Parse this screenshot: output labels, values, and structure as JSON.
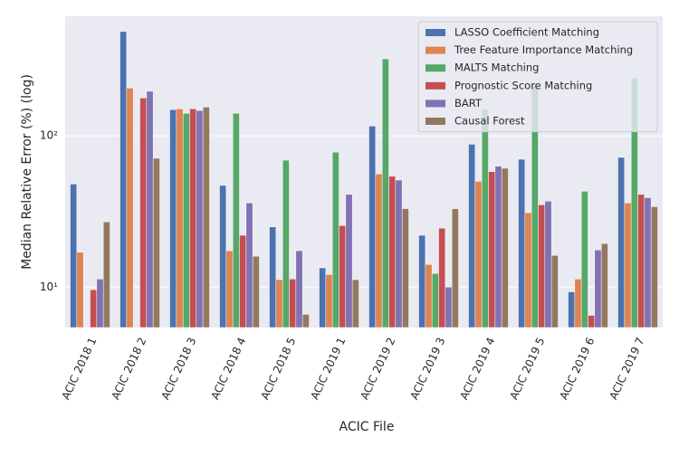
{
  "chart_data": {
    "type": "bar",
    "log_scale": true,
    "grid": true,
    "legend_position": "upper right",
    "xlabel": "ACIC File",
    "ylabel": "Median Relative Error (%) (log)",
    "categories": [
      "ACIC 2018 1",
      "ACIC 2018 2",
      "ACIC 2018 3",
      "ACIC 2018 4",
      "ACIC 2018 5",
      "ACIC 2019 1",
      "ACIC 2019 2",
      "ACIC 2019 3",
      "ACIC 2019 4",
      "ACIC 2019 5",
      "ACIC 2019 6",
      "ACIC 2019 7"
    ],
    "ylim": [
      5.4,
      617
    ],
    "yticks": [
      {
        "value": 10,
        "label": "10¹"
      },
      {
        "value": 100,
        "label": "10²"
      }
    ],
    "series": [
      {
        "name": "LASSO Coefficient Matching",
        "color": "#4c72b0",
        "values": [
          48,
          489,
          149,
          47,
          25,
          13.4,
          116,
          22,
          88,
          70,
          9.3,
          72
        ]
      },
      {
        "name": "Tree Feature Importance Matching",
        "color": "#dd8452",
        "values": [
          17,
          207,
          151,
          17.4,
          11.2,
          12.1,
          56,
          14.1,
          50,
          31,
          11.3,
          36
        ]
      },
      {
        "name": "MALTS Matching",
        "color": "#55a868",
        "values": [
          null,
          null,
          141,
          141,
          69,
          78,
          323,
          12.3,
          150,
          213,
          43,
          242
        ]
      },
      {
        "name": "Prognostic Score Matching",
        "color": "#c44e52",
        "values": [
          9.6,
          178,
          151,
          22,
          11.3,
          25.5,
          54,
          24.5,
          58,
          35,
          6.5,
          41
        ]
      },
      {
        "name": "BART",
        "color": "#8172b3",
        "values": [
          11.3,
          197,
          147,
          36,
          17.4,
          41,
          51,
          10,
          63,
          37,
          17.6,
          39
        ]
      },
      {
        "name": "Causal Forest",
        "color": "#937860",
        "values": [
          27,
          71,
          155,
          16,
          6.6,
          11.2,
          33,
          33,
          61,
          16.2,
          19.4,
          34
        ]
      }
    ]
  }
}
